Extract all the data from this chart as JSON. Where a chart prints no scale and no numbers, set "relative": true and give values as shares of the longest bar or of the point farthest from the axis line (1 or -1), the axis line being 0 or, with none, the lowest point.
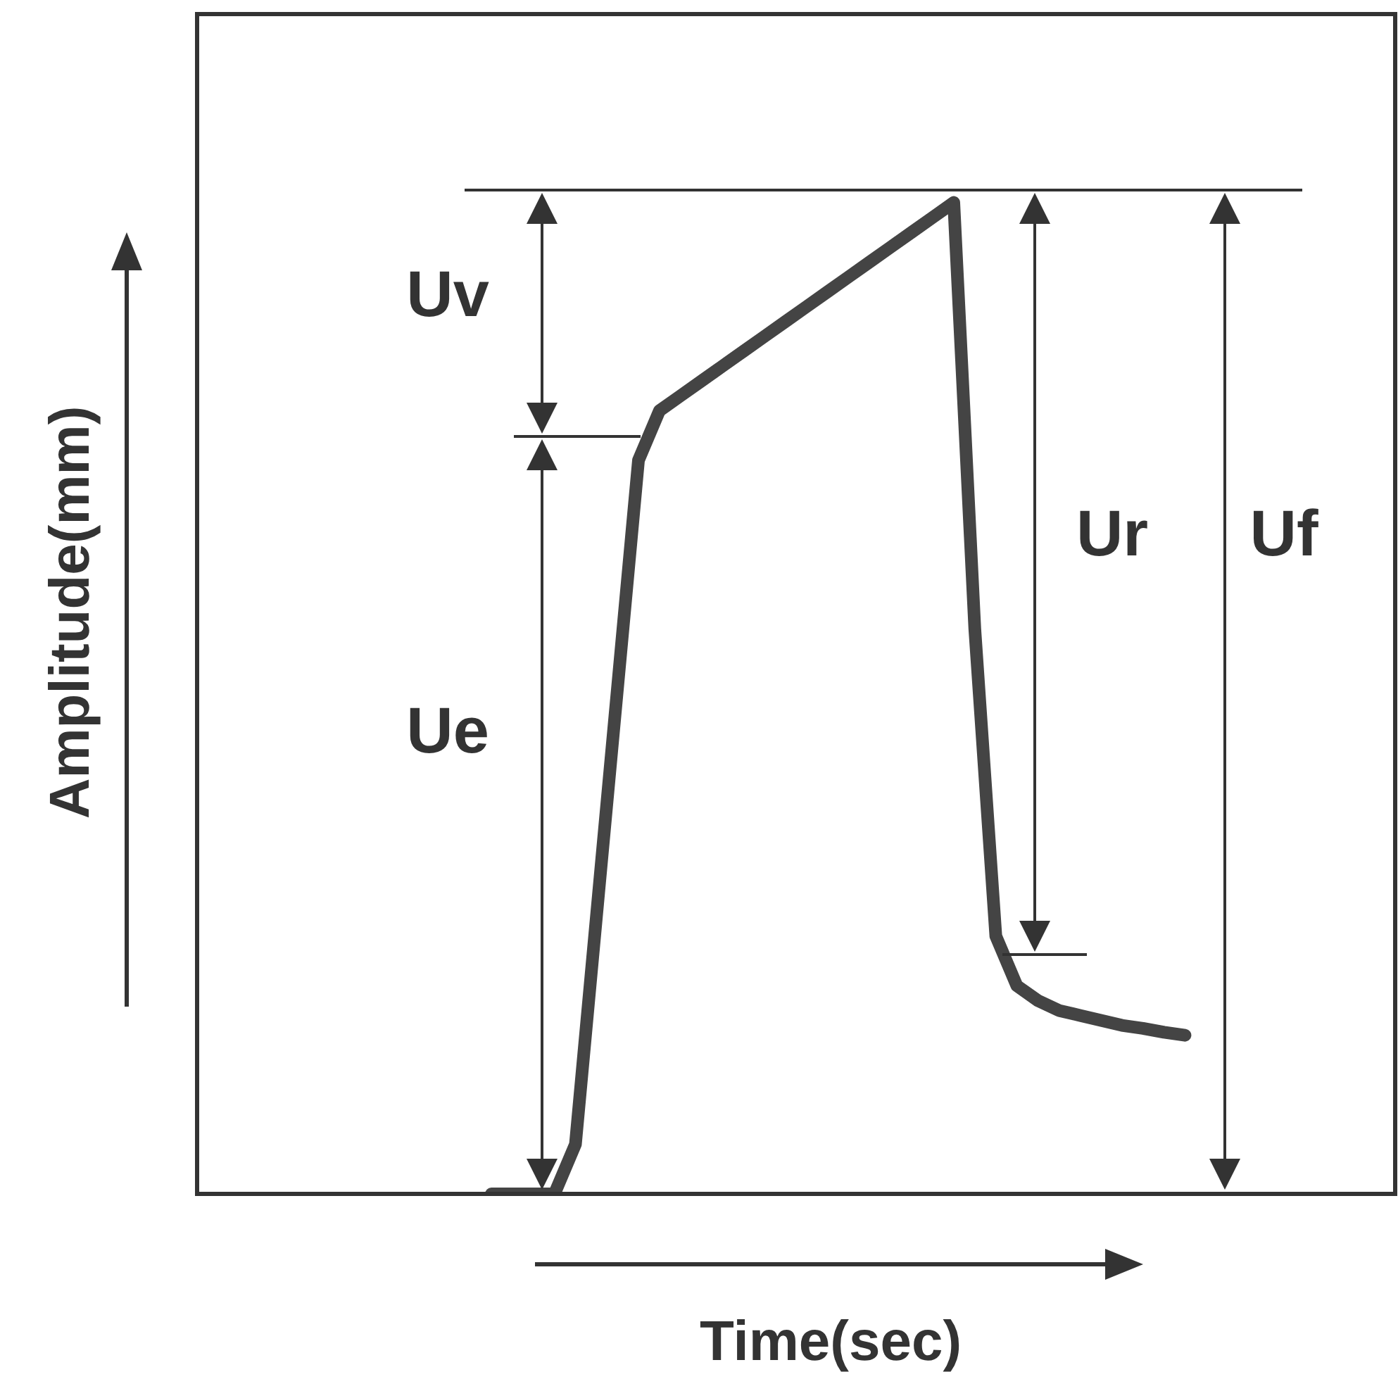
{
  "chart_data": {
    "type": "line",
    "relative": true,
    "xlabel": "Time(sec)",
    "ylabel": "Amplitude(mm)",
    "legend": false,
    "marker": "none",
    "line_style": "solid",
    "categories": [
      null,
      null,
      null,
      null,
      null,
      null,
      null,
      null,
      null,
      null,
      null,
      null,
      null,
      null,
      null,
      null,
      null,
      null,
      null,
      null,
      null,
      null,
      null,
      null,
      null,
      null,
      null,
      null,
      null,
      null,
      null,
      null,
      null,
      null,
      null,
      null,
      null,
      null,
      null,
      null,
      null,
      null,
      null,
      null,
      null,
      null,
      null,
      null,
      null,
      null,
      null,
      null,
      null,
      null,
      null,
      null,
      null,
      null
    ],
    "series": [
      {
        "color": "#444444",
        "values": [
          null,
          null,
          null,
          null,
          null,
          null,
          null,
          null,
          null,
          null,
          null,
          null,
          null,
          null,
          0,
          0,
          0,
          0,
          0.05,
          0.28,
          0.51,
          0.74,
          0.79,
          0.805,
          0.82,
          0.835,
          0.85,
          0.865,
          0.88,
          0.895,
          0.91,
          0.925,
          0.94,
          0.955,
          0.97,
          0.985,
          1,
          0.57,
          0.26,
          0.21,
          0.195,
          0.185,
          0.18,
          0.175,
          0.17,
          0.167,
          0.163,
          0.16,
          null,
          null,
          null,
          null,
          null,
          null,
          null,
          null,
          null,
          null
        ]
      }
    ],
    "annotations": [
      "Uv",
      "Ue",
      "Ur",
      "Uf"
    ]
  }
}
